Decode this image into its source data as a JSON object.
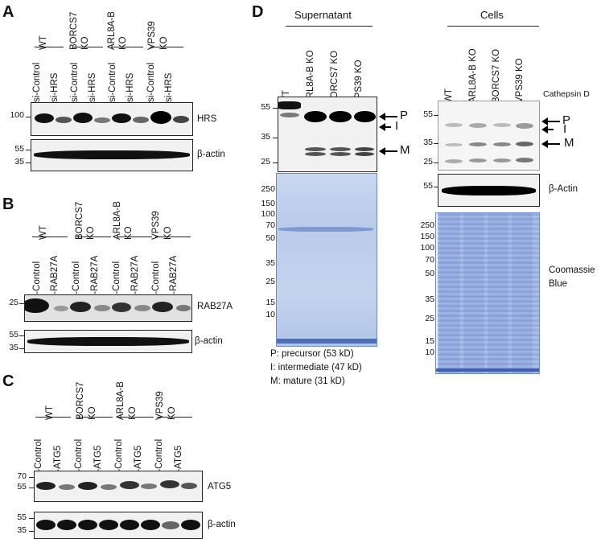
{
  "panels": {
    "A": {
      "letter": "A",
      "groups": [
        {
          "line1": "WT",
          "line2": ""
        },
        {
          "line1": "BORCS7",
          "line2": "KO"
        },
        {
          "line1": "ARL8A-B",
          "line2": "KO"
        },
        {
          "line1": "VPS39",
          "line2": "KO"
        }
      ],
      "lanes": [
        "si-Control",
        "si-HRS",
        "si-Control",
        "si-HRS",
        "si-Control",
        "si-HRS",
        "si-Control",
        "si-HRS"
      ],
      "blot1": {
        "label": "HRS",
        "ticks": [
          "100"
        ]
      },
      "blot2": {
        "label": "β-actin",
        "ticks": [
          "55",
          "35"
        ]
      }
    },
    "B": {
      "letter": "B",
      "groups": [
        {
          "line1": "WT",
          "line2": ""
        },
        {
          "line1": "BORCS7",
          "line2": "KO"
        },
        {
          "line1": "ARL8A-B",
          "line2": "KO"
        },
        {
          "line1": "VPS39",
          "line2": "KO"
        }
      ],
      "lanes": [
        "si-Control",
        "si-RAB27A",
        "si-Control",
        "si-RAB27A",
        "si-Control",
        "si-RAB27A",
        "si-Control",
        "si-RAB27A"
      ],
      "blot1": {
        "label": "RAB27A",
        "ticks": [
          "25"
        ]
      },
      "blot2": {
        "label": "β-actin",
        "ticks": [
          "55",
          "35"
        ]
      }
    },
    "C": {
      "letter": "C",
      "groups": [
        {
          "line1": "WT",
          "line2": ""
        },
        {
          "line1": "BORCS7",
          "line2": "KO"
        },
        {
          "line1": "ARL8A-B",
          "line2": "KO"
        },
        {
          "line1": "VPS39",
          "line2": "KO"
        }
      ],
      "lanes": [
        "si-Control",
        "si-ATG5",
        "si-Control",
        "si-ATG5",
        "si-Control",
        "si-ATG5",
        "si-Control",
        "si-ATG5"
      ],
      "blot1": {
        "label": "ATG5",
        "ticks": [
          "70",
          "55"
        ]
      },
      "blot2": {
        "label": "β-actin",
        "ticks": [
          "55",
          "35"
        ]
      }
    },
    "D": {
      "letter": "D",
      "supernatant": {
        "title": "Supernatant",
        "lanes": [
          "WT",
          "ARL8A-B KO",
          "BORCS7 KO",
          "VPS39 KO"
        ],
        "blot_ticks": [
          "55",
          "35",
          "25"
        ],
        "band_markers": [
          "P",
          "I",
          "M"
        ],
        "gel_ticks": [
          "250",
          "150",
          "100",
          "70",
          "50",
          "35",
          "25",
          "15",
          "10"
        ],
        "legend": [
          "P: precursor (53 kD)",
          "I: intermediate (47 kD)",
          "M: mature (31 kD)"
        ]
      },
      "cells": {
        "title": "Cells",
        "lanes": [
          "WT",
          "ARL8A-B KO",
          "BORCS7 KO",
          "VPS39 KO"
        ],
        "blot_label": "Cathepsin D",
        "blot_ticks": [
          "55",
          "35",
          "25"
        ],
        "band_markers": [
          "P",
          "I",
          "M"
        ],
        "actin_label": "β-Actin",
        "actin_ticks": [
          "55"
        ],
        "gel_label_line1": "Coomassie",
        "gel_label_line2": "Blue",
        "gel_ticks": [
          "250",
          "150",
          "100",
          "70",
          "50",
          "35",
          "25",
          "15",
          "10"
        ]
      }
    }
  }
}
